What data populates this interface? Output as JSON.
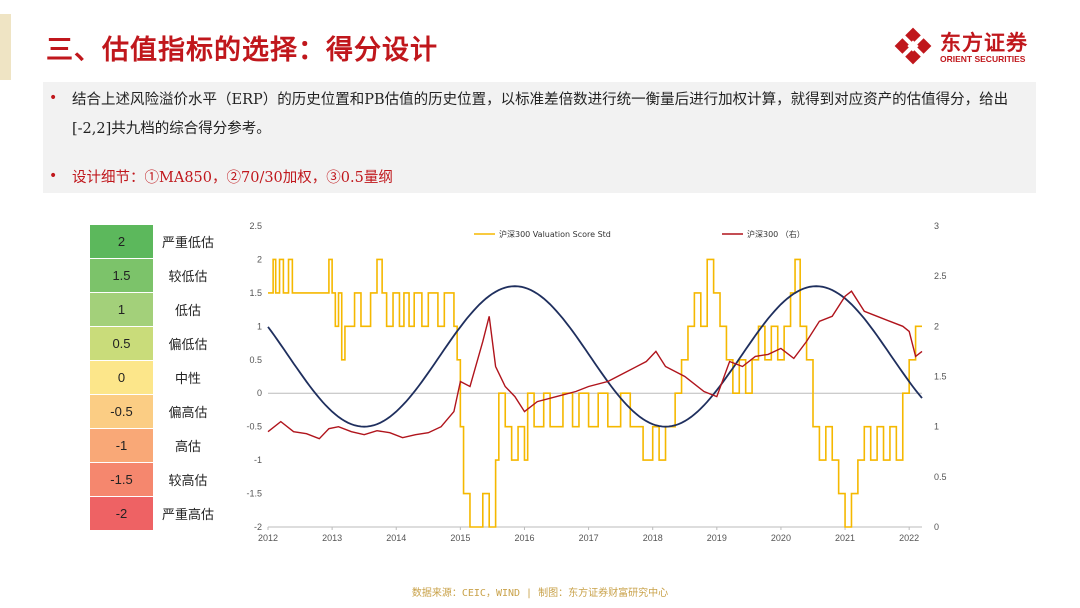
{
  "header": {
    "title": "三、估值指标的选择：得分设计",
    "logo_name": "东方证券",
    "logo_en": "ORIENT SECURITIES"
  },
  "bullets": [
    {
      "text": "结合上述风险溢价水平（ERP）的历史位置和PB估值的历史位置，以标准差倍数进行统一衡量后进行加权计算，就得到对应资产的估值得分，给出[-2,2]共九档的综合得分参考。",
      "color": "#222222"
    },
    {
      "text": "设计细节：①MA850，②70/30加权，③0.5量纲",
      "color": "#c0171c"
    }
  ],
  "score_table": [
    {
      "score": "2",
      "label": "严重低估",
      "color": "#5cb85c"
    },
    {
      "score": "1.5",
      "label": "较低估",
      "color": "#7cc36a"
    },
    {
      "score": "1",
      "label": "低估",
      "color": "#a3d07a"
    },
    {
      "score": "0.5",
      "label": "偏低估",
      "color": "#c9dc7a"
    },
    {
      "score": "0",
      "label": "中性",
      "color": "#fce68a"
    },
    {
      "score": "-0.5",
      "label": "偏高估",
      "color": "#fbcd84"
    },
    {
      "score": "-1",
      "label": "高估",
      "color": "#f9a877"
    },
    {
      "score": "-1.5",
      "label": "较高估",
      "color": "#f5876e"
    },
    {
      "score": "-2",
      "label": "严重高估",
      "color": "#ee6264"
    }
  ],
  "chart_data": {
    "type": "line",
    "x_ticks": [
      "2012",
      "2013",
      "2014",
      "2015",
      "2016",
      "2017",
      "2018",
      "2019",
      "2020",
      "2021",
      "2022"
    ],
    "xlim": [
      2012.0,
      2022.2
    ],
    "ylim_left": [
      -2,
      2.5
    ],
    "yticks_left": [
      "2.5",
      "2",
      "1.5",
      "1",
      "0.5",
      "0",
      "-0.5",
      "-1",
      "-1.5",
      "-2"
    ],
    "ylim_right": [
      0,
      3
    ],
    "yticks_right": [
      "3",
      "2.5",
      "2",
      "1.5",
      "1",
      "0.5",
      "0"
    ],
    "legend_position": "top",
    "series": [
      {
        "name": "沪深300 Valuation Score Std",
        "axis": "left",
        "color": "#f5b800",
        "style": "step",
        "points": [
          [
            2012.0,
            1.5
          ],
          [
            2012.08,
            2
          ],
          [
            2012.12,
            1.5
          ],
          [
            2012.18,
            2
          ],
          [
            2012.24,
            1.5
          ],
          [
            2012.32,
            2
          ],
          [
            2012.38,
            1.5
          ],
          [
            2012.9,
            1.5
          ],
          [
            2012.95,
            2
          ],
          [
            2013.0,
            1.5
          ],
          [
            2013.05,
            1
          ],
          [
            2013.1,
            1.5
          ],
          [
            2013.15,
            0.5
          ],
          [
            2013.2,
            1
          ],
          [
            2013.35,
            1.5
          ],
          [
            2013.45,
            1
          ],
          [
            2013.6,
            1.5
          ],
          [
            2013.7,
            2
          ],
          [
            2013.78,
            1.5
          ],
          [
            2013.85,
            1
          ],
          [
            2013.95,
            1.5
          ],
          [
            2014.05,
            1
          ],
          [
            2014.12,
            1.5
          ],
          [
            2014.2,
            1
          ],
          [
            2014.28,
            1.5
          ],
          [
            2014.4,
            1
          ],
          [
            2014.5,
            1.5
          ],
          [
            2014.65,
            1
          ],
          [
            2014.75,
            1.5
          ],
          [
            2014.9,
            1
          ],
          [
            2014.95,
            0.5
          ],
          [
            2015.0,
            -0.5
          ],
          [
            2015.05,
            -1.5
          ],
          [
            2015.15,
            -2
          ],
          [
            2015.35,
            -1.5
          ],
          [
            2015.45,
            -2
          ],
          [
            2015.55,
            -1
          ],
          [
            2015.6,
            0
          ],
          [
            2015.7,
            -0.5
          ],
          [
            2015.8,
            -1
          ],
          [
            2015.9,
            -0.5
          ],
          [
            2016.0,
            -1
          ],
          [
            2016.05,
            0
          ],
          [
            2016.15,
            -0.5
          ],
          [
            2016.3,
            0
          ],
          [
            2016.4,
            -0.5
          ],
          [
            2016.6,
            0
          ],
          [
            2016.75,
            -0.5
          ],
          [
            2016.85,
            0
          ],
          [
            2017.0,
            -0.5
          ],
          [
            2017.15,
            0
          ],
          [
            2017.3,
            -0.5
          ],
          [
            2017.5,
            0
          ],
          [
            2017.65,
            -0.5
          ],
          [
            2017.85,
            -1
          ],
          [
            2018.0,
            -0.5
          ],
          [
            2018.1,
            -1
          ],
          [
            2018.2,
            -0.5
          ],
          [
            2018.35,
            0
          ],
          [
            2018.45,
            0.5
          ],
          [
            2018.55,
            1
          ],
          [
            2018.65,
            1.5
          ],
          [
            2018.75,
            1
          ],
          [
            2018.85,
            2
          ],
          [
            2018.95,
            1.5
          ],
          [
            2019.05,
            1
          ],
          [
            2019.15,
            0.5
          ],
          [
            2019.25,
            0
          ],
          [
            2019.35,
            0.5
          ],
          [
            2019.45,
            0
          ],
          [
            2019.55,
            0.5
          ],
          [
            2019.65,
            1
          ],
          [
            2019.75,
            0.5
          ],
          [
            2019.85,
            1
          ],
          [
            2019.95,
            0.5
          ],
          [
            2020.05,
            1
          ],
          [
            2020.15,
            1.5
          ],
          [
            2020.22,
            2
          ],
          [
            2020.3,
            1
          ],
          [
            2020.4,
            0.5
          ],
          [
            2020.5,
            -0.5
          ],
          [
            2020.6,
            -1
          ],
          [
            2020.7,
            -0.5
          ],
          [
            2020.8,
            -1
          ],
          [
            2020.9,
            -1.5
          ],
          [
            2021.0,
            -2
          ],
          [
            2021.1,
            -1.5
          ],
          [
            2021.2,
            -1
          ],
          [
            2021.3,
            -0.5
          ],
          [
            2021.4,
            -1
          ],
          [
            2021.5,
            -0.5
          ],
          [
            2021.6,
            -1
          ],
          [
            2021.7,
            -0.5
          ],
          [
            2021.8,
            -1
          ],
          [
            2021.9,
            0
          ],
          [
            2022.0,
            0.5
          ],
          [
            2022.1,
            1
          ],
          [
            2022.2,
            1
          ]
        ]
      },
      {
        "name": "沪深300 （右）",
        "axis": "right",
        "color": "#b0141c",
        "style": "line",
        "points": [
          [
            2012.0,
            0.95
          ],
          [
            2012.2,
            1.05
          ],
          [
            2012.4,
            0.95
          ],
          [
            2012.6,
            0.93
          ],
          [
            2012.8,
            0.88
          ],
          [
            2012.95,
            0.98
          ],
          [
            2013.1,
            1.0
          ],
          [
            2013.3,
            0.95
          ],
          [
            2013.5,
            0.92
          ],
          [
            2013.7,
            0.96
          ],
          [
            2013.9,
            0.94
          ],
          [
            2014.1,
            0.89
          ],
          [
            2014.3,
            0.92
          ],
          [
            2014.5,
            0.94
          ],
          [
            2014.7,
            1.0
          ],
          [
            2014.9,
            1.15
          ],
          [
            2015.0,
            1.45
          ],
          [
            2015.15,
            1.4
          ],
          [
            2015.35,
            1.85
          ],
          [
            2015.45,
            2.1
          ],
          [
            2015.55,
            1.6
          ],
          [
            2015.7,
            1.4
          ],
          [
            2015.85,
            1.3
          ],
          [
            2016.0,
            1.15
          ],
          [
            2016.2,
            1.25
          ],
          [
            2016.5,
            1.3
          ],
          [
            2016.8,
            1.35
          ],
          [
            2017.0,
            1.4
          ],
          [
            2017.3,
            1.45
          ],
          [
            2017.6,
            1.55
          ],
          [
            2017.9,
            1.65
          ],
          [
            2018.05,
            1.75
          ],
          [
            2018.2,
            1.6
          ],
          [
            2018.5,
            1.5
          ],
          [
            2018.8,
            1.35
          ],
          [
            2019.0,
            1.3
          ],
          [
            2019.2,
            1.65
          ],
          [
            2019.4,
            1.6
          ],
          [
            2019.6,
            1.7
          ],
          [
            2019.8,
            1.72
          ],
          [
            2020.0,
            1.78
          ],
          [
            2020.2,
            1.68
          ],
          [
            2020.4,
            1.85
          ],
          [
            2020.6,
            2.05
          ],
          [
            2020.8,
            2.1
          ],
          [
            2021.0,
            2.3
          ],
          [
            2021.1,
            2.35
          ],
          [
            2021.3,
            2.15
          ],
          [
            2021.5,
            2.1
          ],
          [
            2021.7,
            2.05
          ],
          [
            2021.9,
            2.0
          ],
          [
            2022.0,
            1.95
          ],
          [
            2022.1,
            1.7
          ],
          [
            2022.2,
            1.75
          ]
        ]
      }
    ]
  },
  "footer": {
    "text": "数据来源：CEIC，WIND  | 制图：东方证券财富研究中心"
  }
}
